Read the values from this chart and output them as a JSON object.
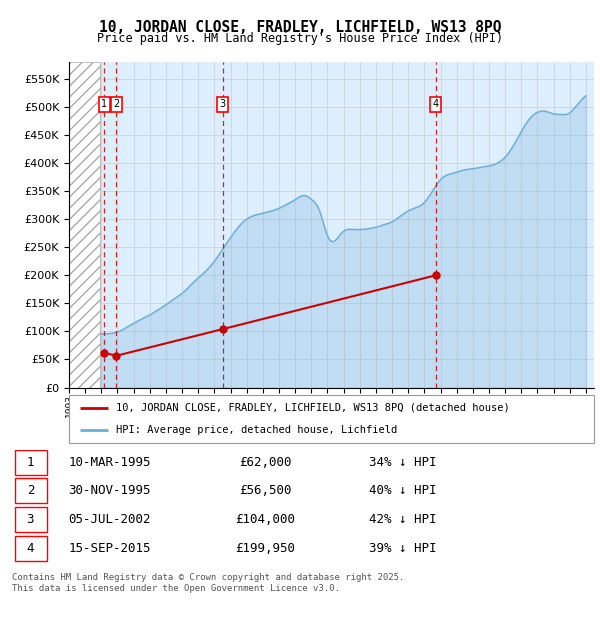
{
  "title": "10, JORDAN CLOSE, FRADLEY, LICHFIELD, WS13 8PQ",
  "subtitle": "Price paid vs. HM Land Registry's House Price Index (HPI)",
  "footer": "Contains HM Land Registry data © Crown copyright and database right 2025.\nThis data is licensed under the Open Government Licence v3.0.",
  "legend_line1": "10, JORDAN CLOSE, FRADLEY, LICHFIELD, WS13 8PQ (detached house)",
  "legend_line2": "HPI: Average price, detached house, Lichfield",
  "sales": [
    {
      "num": 1,
      "date": "10-MAR-1995",
      "year": 1995.19,
      "price": 62000,
      "pct": "34% ↓ HPI"
    },
    {
      "num": 2,
      "date": "30-NOV-1995",
      "year": 1995.92,
      "price": 56500,
      "pct": "40% ↓ HPI"
    },
    {
      "num": 3,
      "date": "05-JUL-2002",
      "year": 2002.51,
      "price": 104000,
      "pct": "42% ↓ HPI"
    },
    {
      "num": 4,
      "date": "15-SEP-2015",
      "year": 2015.71,
      "price": 199950,
      "pct": "39% ↓ HPI"
    }
  ],
  "hpi_color": "#6baed6",
  "sales_color": "#cc0000",
  "hatch_color": "#bbbbbb",
  "grid_color": "#cccccc",
  "ylim": [
    0,
    580000
  ],
  "yticks": [
    0,
    50000,
    100000,
    150000,
    200000,
    250000,
    300000,
    350000,
    400000,
    450000,
    500000,
    550000
  ],
  "xlim_start": 1993.0,
  "xlim_end": 2025.5,
  "background_color": "#ddeeff"
}
